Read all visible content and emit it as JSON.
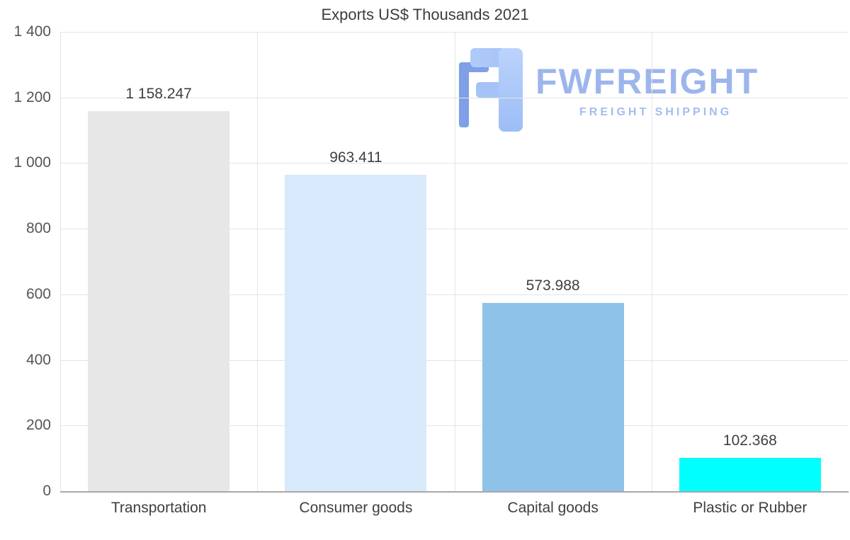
{
  "logo": {
    "name": "FWFREIGHT",
    "tagline": "FREIGHT SHIPPING",
    "text_color": "#9cb6ec",
    "mark_light": "#a5c3f8",
    "mark_dark": "#7f9fe6"
  },
  "chart_data": {
    "type": "bar",
    "title": "Exports US$ Thousands 2021",
    "categories": [
      "Transportation",
      "Consumer goods",
      "Capital goods",
      "Plastic or Rubber"
    ],
    "values": [
      1158.247,
      963.411,
      573.988,
      102.368
    ],
    "value_labels": [
      "1 158.247",
      "963.411",
      "573.988",
      "102.368"
    ],
    "bar_colors": [
      "#e7e7e7",
      "#d8e9fc",
      "#8fc2e9",
      "#00ffff"
    ],
    "xlabel": "",
    "ylabel": "",
    "ylim": [
      0,
      1400
    ],
    "yticks": [
      {
        "value": 0,
        "label": "0"
      },
      {
        "value": 200,
        "label": "200"
      },
      {
        "value": 400,
        "label": "400"
      },
      {
        "value": 600,
        "label": "600"
      },
      {
        "value": 800,
        "label": "800"
      },
      {
        "value": 1000,
        "label": "1 000"
      },
      {
        "value": 1200,
        "label": "1 200"
      },
      {
        "value": 1400,
        "label": "1 400"
      }
    ],
    "grid": "horizontal gridlines at each y tick, vertical gridlines between categories",
    "legend": "none"
  }
}
